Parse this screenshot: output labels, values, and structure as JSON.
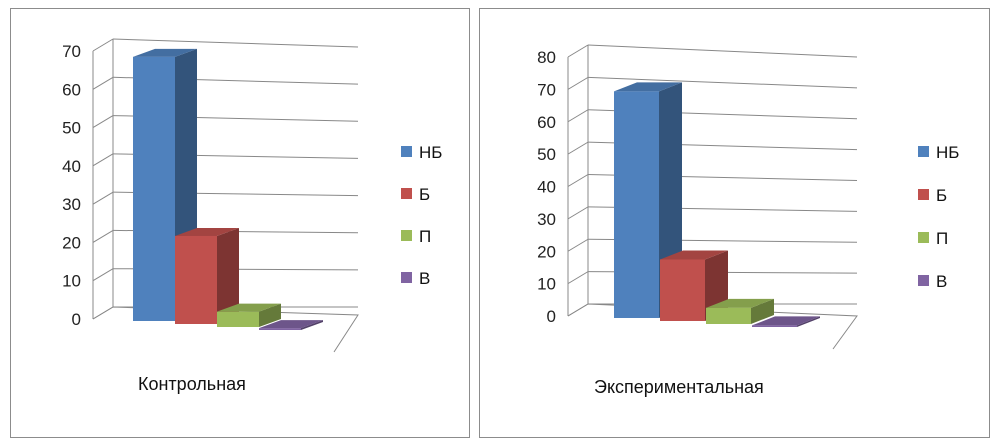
{
  "chart_data": [
    {
      "type": "bar",
      "caption": "Контрольная",
      "categories": [
        "НБ",
        "Б",
        "П",
        "В"
      ],
      "values": [
        69,
        23,
        4,
        0.5
      ],
      "ylim": [
        0,
        70
      ],
      "yticks": [
        0,
        10,
        20,
        30,
        40,
        50,
        60,
        70
      ],
      "grid": true,
      "legend_position": "right",
      "three_d": true
    },
    {
      "type": "bar",
      "caption": "Экспериментальная",
      "categories": [
        "НБ",
        "Б",
        "П",
        "В"
      ],
      "values": [
        70,
        19,
        5,
        0.5
      ],
      "ylim": [
        0,
        80
      ],
      "yticks": [
        0,
        10,
        20,
        30,
        40,
        50,
        60,
        70,
        80
      ],
      "grid": true,
      "legend_position": "right",
      "three_d": true
    }
  ],
  "colors": {
    "НБ": "#4f81bd",
    "Б": "#c0504d",
    "П": "#9bbb59",
    "В": "#8064a2"
  }
}
